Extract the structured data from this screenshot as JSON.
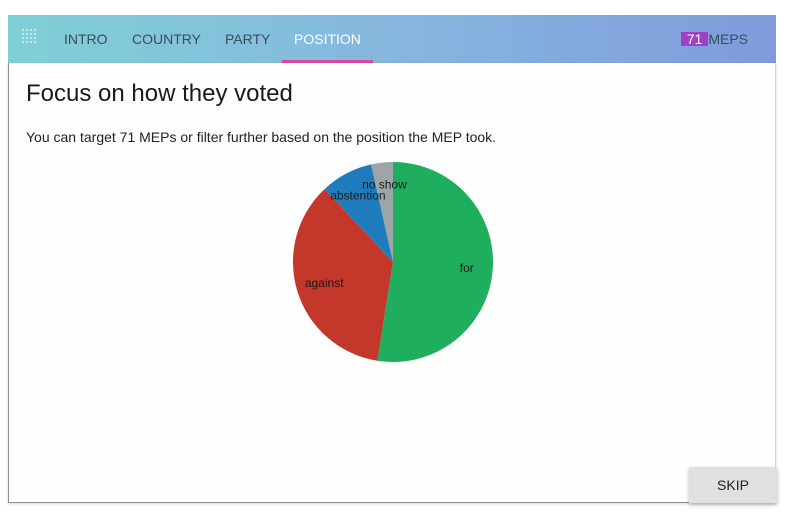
{
  "nav": {
    "tabs": [
      {
        "label": "INTRO",
        "active": false
      },
      {
        "label": "COUNTRY",
        "active": false
      },
      {
        "label": "PARTY",
        "active": false
      },
      {
        "label": "POSITION",
        "active": true
      }
    ],
    "mep_count": "71",
    "mep_label": "MEPS",
    "accent_color": "#e0479e",
    "count_badge_color": "#a140c6"
  },
  "main": {
    "title": "Focus on how they voted",
    "description": "You can target 71 MEPs or filter further based on the position the MEP took."
  },
  "chart_data": {
    "type": "pie",
    "slices": [
      {
        "label": "for",
        "value": 52.5,
        "color": "#1fad5e"
      },
      {
        "label": "against",
        "value": 35.5,
        "color": "#c4372b"
      },
      {
        "label": "abstention",
        "value": 8.5,
        "color": "#1f7cbd"
      },
      {
        "label": "no show",
        "value": 3.5,
        "color": "#9ea5a6"
      }
    ]
  },
  "footer": {
    "skip_label": "SKIP"
  }
}
